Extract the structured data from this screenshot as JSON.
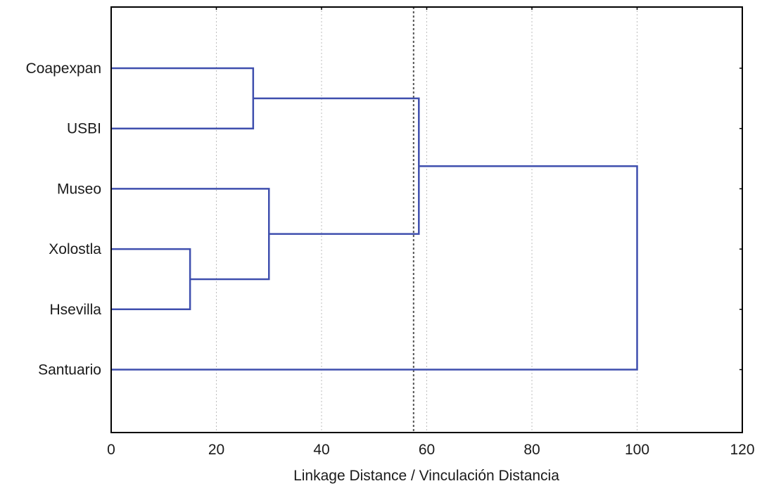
{
  "chart_data": {
    "type": "dendrogram",
    "orientation": "horizontal",
    "xlabel": "Linkage Distance / Vinculación Distancia",
    "xlim": [
      0,
      120
    ],
    "xticks": [
      0,
      20,
      40,
      60,
      80,
      100,
      120
    ],
    "grid": "vertical-dotted",
    "leaves": [
      "Coapexpan",
      "USBI",
      "Museo",
      "Xolostla",
      "Hsevilla",
      "Santuario"
    ],
    "merges": [
      {
        "left": "Xolostla",
        "right": "Hsevilla",
        "distance": 15
      },
      {
        "left": "Coapexpan",
        "right": "USBI",
        "distance": 27
      },
      {
        "left": "Museo",
        "right": "Xolostla+Hsevilla",
        "distance": 30
      },
      {
        "left": "Coapexpan+USBI",
        "right": "Museo+Xolostla+Hsevilla",
        "distance": 58.5
      },
      {
        "left": "Coapexpan+USBI+Museo+Xolostla+Hsevilla",
        "right": "Santuario",
        "distance": 100
      }
    ],
    "cutoff_line": 57.5,
    "colors": {
      "link": "#3f4fae",
      "frame": "#000000",
      "cutoff": "#555555",
      "grid": "#bdbdbd"
    }
  }
}
